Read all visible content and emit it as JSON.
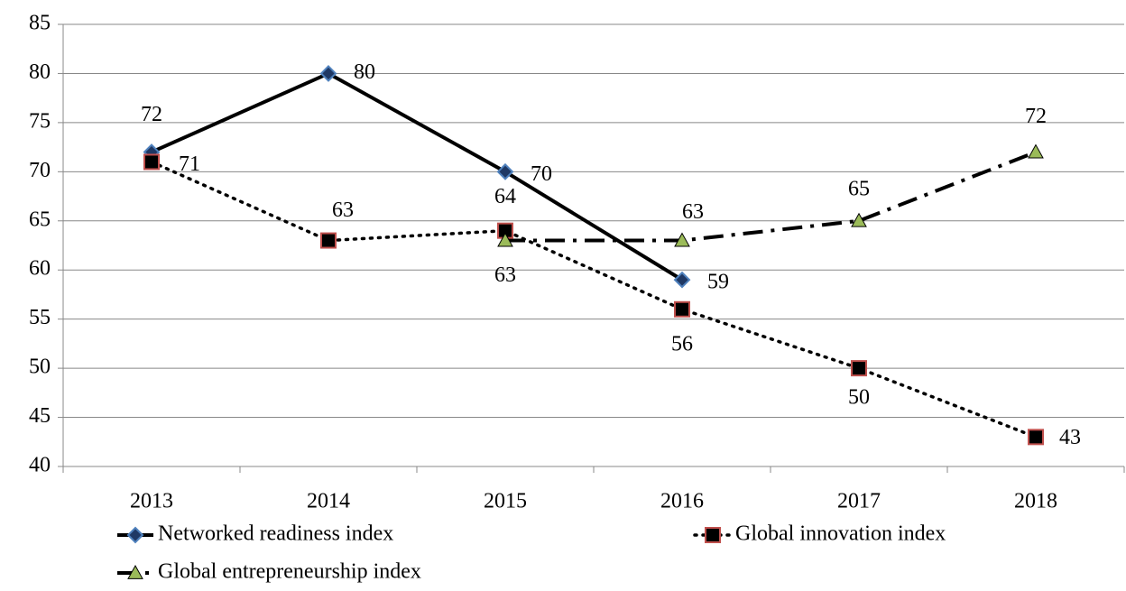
{
  "chart_data": {
    "type": "line",
    "categories": [
      "2013",
      "2014",
      "2015",
      "2016",
      "2017",
      "2018"
    ],
    "series": [
      {
        "name": "Networked readiness index",
        "color": "#000000",
        "line_style": "solid",
        "marker": "diamond",
        "marker_fill": "#1f3864",
        "marker_edge": "#4f81bd",
        "values": [
          72,
          80,
          70,
          59,
          null,
          null
        ]
      },
      {
        "name": "Global innovation index",
        "color": "#000000",
        "line_style": "dotted",
        "marker": "square",
        "marker_fill": "#000000",
        "marker_edge": "#c0504d",
        "values": [
          71,
          63,
          64,
          56,
          50,
          43
        ]
      },
      {
        "name": "Global entrepreneurship index",
        "color": "#000000",
        "line_style": "dashdot",
        "marker": "triangle",
        "marker_fill": "#9bbb59",
        "marker_edge": "#000000",
        "values": [
          null,
          null,
          63,
          63,
          65,
          72
        ]
      }
    ],
    "ylim": [
      40,
      85
    ],
    "yticks": [
      40,
      45,
      50,
      55,
      60,
      65,
      70,
      75,
      80,
      85
    ],
    "grid": true,
    "legend": "bottom"
  }
}
